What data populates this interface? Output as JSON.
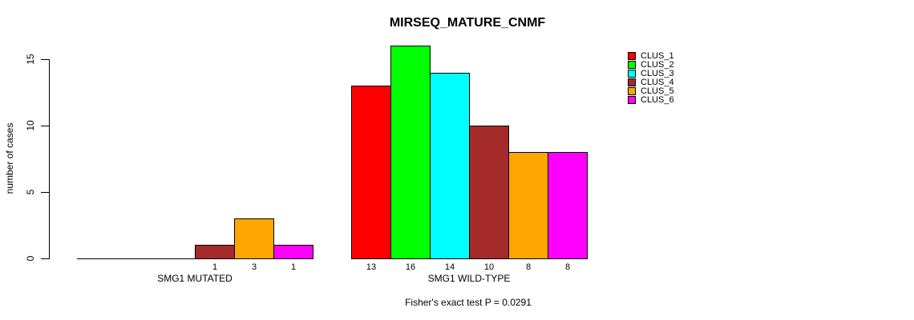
{
  "chart_data": {
    "type": "bar",
    "title": "MIRSEQ_MATURE_CNMF",
    "ylabel": "number of cases",
    "xlabel": "",
    "annotation": "Fisher's exact test P = 0.0291",
    "ylim": [
      0,
      15
    ],
    "yticks": [
      0,
      5,
      10,
      15
    ],
    "grid": false,
    "legend_position": "right",
    "clusters": [
      "CLUS_1",
      "CLUS_2",
      "CLUS_3",
      "CLUS_4",
      "CLUS_5",
      "CLUS_6"
    ],
    "cluster_colors": [
      "#ff0000",
      "#00ff00",
      "#00ffff",
      "#a52a2a",
      "#ffa500",
      "#ff00ff"
    ],
    "groups": [
      {
        "label": "SMG1 MUTATED",
        "values": [
          0,
          0,
          0,
          1,
          3,
          1
        ],
        "bar_labels": [
          "",
          "",
          "",
          "1",
          "3",
          "1"
        ]
      },
      {
        "label": "SMG1 WILD-TYPE",
        "values": [
          13,
          16,
          14,
          10,
          8,
          8
        ],
        "bar_labels": [
          "13",
          "16",
          "14",
          "10",
          "8",
          "8"
        ]
      }
    ]
  }
}
